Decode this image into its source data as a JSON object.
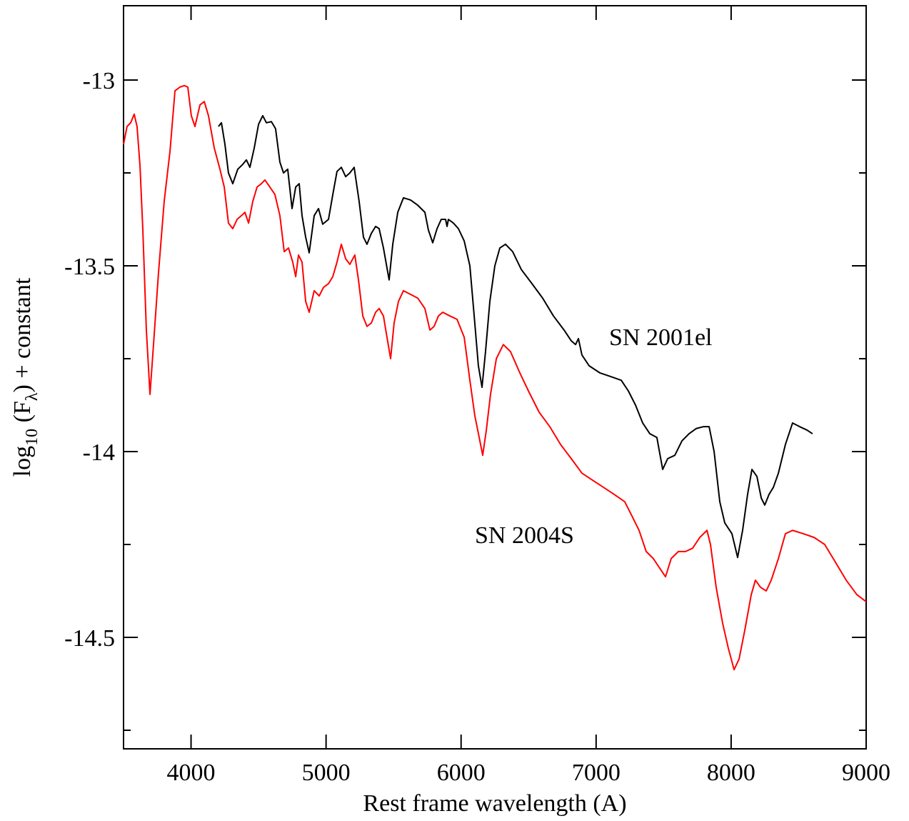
{
  "chart_data": {
    "type": "line",
    "x_label": "Rest frame wavelength (A)",
    "y_label": [
      "log",
      "10",
      " (F",
      "λ",
      ") + constant"
    ],
    "xlim": [
      3500,
      9000
    ],
    "xticks": [
      4000,
      5000,
      6000,
      7000,
      8000,
      9000
    ],
    "ylim": [
      -14.8,
      -12.8
    ],
    "yticks": [
      -13,
      -13.5,
      -14,
      -14.5
    ],
    "yminor_ticks": [
      -13.25,
      -13.75,
      -14.25,
      -14.75
    ],
    "series": [
      {
        "name": "SN 2001el",
        "color": "#000000",
        "x": [
          4203,
          4225,
          4251,
          4277,
          4309,
          4346,
          4383,
          4410,
          4436,
          4468,
          4500,
          4531,
          4558,
          4595,
          4626,
          4658,
          4685,
          4716,
          4748,
          4775,
          4801,
          4822,
          4849,
          4875,
          4912,
          4944,
          4975,
          5018,
          5050,
          5081,
          5113,
          5145,
          5176,
          5208,
          5245,
          5277,
          5303,
          5335,
          5367,
          5393,
          5425,
          5467,
          5494,
          5531,
          5573,
          5626,
          5679,
          5732,
          5758,
          5790,
          5822,
          5853,
          5885,
          5896,
          5906,
          5943,
          5980,
          6023,
          6065,
          6097,
          6128,
          6155,
          6181,
          6213,
          6250,
          6287,
          6329,
          6382,
          6446,
          6525,
          6604,
          6684,
          6763,
          6816,
          6848,
          6869,
          6895,
          6948,
          7027,
          7107,
          7186,
          7239,
          7292,
          7345,
          7398,
          7450,
          7493,
          7530,
          7583,
          7636,
          7688,
          7741,
          7794,
          7837,
          7874,
          7916,
          7953,
          8006,
          8048,
          8085,
          8122,
          8154,
          8191,
          8223,
          8249,
          8281,
          8313,
          8350,
          8402,
          8455,
          8508,
          8561,
          8603
        ],
        "values": [
          -13.125,
          -13.115,
          -13.173,
          -13.25,
          -13.279,
          -13.24,
          -13.227,
          -13.215,
          -13.235,
          -13.183,
          -13.119,
          -13.096,
          -13.115,
          -13.112,
          -13.131,
          -13.221,
          -13.25,
          -13.24,
          -13.346,
          -13.288,
          -13.279,
          -13.365,
          -13.423,
          -13.465,
          -13.365,
          -13.346,
          -13.388,
          -13.375,
          -13.308,
          -13.246,
          -13.235,
          -13.26,
          -13.25,
          -13.235,
          -13.327,
          -13.423,
          -13.442,
          -13.413,
          -13.394,
          -13.4,
          -13.452,
          -13.538,
          -13.442,
          -13.356,
          -13.317,
          -13.323,
          -13.337,
          -13.356,
          -13.404,
          -13.438,
          -13.4,
          -13.375,
          -13.375,
          -13.394,
          -13.375,
          -13.385,
          -13.4,
          -13.433,
          -13.5,
          -13.635,
          -13.769,
          -13.827,
          -13.731,
          -13.596,
          -13.5,
          -13.452,
          -13.442,
          -13.462,
          -13.51,
          -13.548,
          -13.587,
          -13.635,
          -13.673,
          -13.702,
          -13.712,
          -13.696,
          -13.74,
          -13.769,
          -13.788,
          -13.798,
          -13.808,
          -13.837,
          -13.875,
          -13.923,
          -13.952,
          -13.962,
          -14.048,
          -14.019,
          -14.01,
          -13.971,
          -13.952,
          -13.938,
          -13.933,
          -13.933,
          -14,
          -14.135,
          -14.192,
          -14.221,
          -14.285,
          -14.212,
          -14.115,
          -14.048,
          -14.067,
          -14.125,
          -14.144,
          -14.115,
          -14.096,
          -14.058,
          -13.981,
          -13.923,
          -13.933,
          -13.942,
          -13.952
        ]
      },
      {
        "name": "SN 2004S",
        "color": "#ff0000",
        "x": [
          3500,
          3526,
          3553,
          3579,
          3600,
          3622,
          3643,
          3669,
          3696,
          3722,
          3759,
          3801,
          3844,
          3881,
          3918,
          3950,
          3976,
          4002,
          4029,
          4066,
          4098,
          4129,
          4172,
          4214,
          4246,
          4277,
          4309,
          4341,
          4373,
          4399,
          4426,
          4457,
          4489,
          4521,
          4547,
          4584,
          4621,
          4658,
          4690,
          4722,
          4753,
          4775,
          4796,
          4822,
          4849,
          4875,
          4912,
          4949,
          4981,
          5018,
          5050,
          5081,
          5113,
          5145,
          5176,
          5213,
          5240,
          5272,
          5303,
          5335,
          5367,
          5393,
          5425,
          5451,
          5478,
          5504,
          5536,
          5573,
          5626,
          5679,
          5732,
          5769,
          5800,
          5832,
          5864,
          5917,
          5970,
          6023,
          6065,
          6102,
          6134,
          6160,
          6187,
          6218,
          6261,
          6313,
          6366,
          6435,
          6499,
          6578,
          6657,
          6737,
          6816,
          6895,
          6974,
          7054,
          7133,
          7212,
          7265,
          7318,
          7371,
          7424,
          7477,
          7514,
          7556,
          7609,
          7662,
          7715,
          7768,
          7821,
          7847,
          7889,
          7937,
          7979,
          8022,
          8059,
          8101,
          8149,
          8180,
          8217,
          8260,
          8297,
          8350,
          8402,
          8455,
          8535,
          8614,
          8693,
          8773,
          8852,
          8931,
          9000
        ],
        "values": [
          -13.173,
          -13.125,
          -13.115,
          -13.092,
          -13.125,
          -13.231,
          -13.404,
          -13.673,
          -13.846,
          -13.712,
          -13.519,
          -13.327,
          -13.192,
          -13.029,
          -13.019,
          -13.015,
          -13.019,
          -13.096,
          -13.125,
          -13.067,
          -13.058,
          -13.096,
          -13.183,
          -13.24,
          -13.288,
          -13.385,
          -13.4,
          -13.375,
          -13.365,
          -13.356,
          -13.385,
          -13.327,
          -13.288,
          -13.279,
          -13.269,
          -13.288,
          -13.308,
          -13.365,
          -13.462,
          -13.452,
          -13.49,
          -13.529,
          -13.471,
          -13.49,
          -13.596,
          -13.625,
          -13.567,
          -13.581,
          -13.558,
          -13.548,
          -13.529,
          -13.49,
          -13.442,
          -13.481,
          -13.496,
          -13.471,
          -13.538,
          -13.635,
          -13.663,
          -13.654,
          -13.625,
          -13.615,
          -13.635,
          -13.692,
          -13.75,
          -13.654,
          -13.596,
          -13.567,
          -13.577,
          -13.587,
          -13.615,
          -13.673,
          -13.663,
          -13.635,
          -13.625,
          -13.635,
          -13.644,
          -13.692,
          -13.808,
          -13.904,
          -13.962,
          -14.01,
          -13.942,
          -13.846,
          -13.75,
          -13.712,
          -13.731,
          -13.788,
          -13.837,
          -13.894,
          -13.933,
          -13.981,
          -14.019,
          -14.058,
          -14.077,
          -14.096,
          -14.115,
          -14.135,
          -14.173,
          -14.212,
          -14.269,
          -14.288,
          -14.317,
          -14.337,
          -14.288,
          -14.269,
          -14.269,
          -14.26,
          -14.231,
          -14.212,
          -14.25,
          -14.365,
          -14.462,
          -14.529,
          -14.587,
          -14.558,
          -14.481,
          -14.385,
          -14.346,
          -14.365,
          -14.375,
          -14.346,
          -14.288,
          -14.221,
          -14.212,
          -14.221,
          -14.231,
          -14.25,
          -14.298,
          -14.346,
          -14.385,
          -14.404
        ]
      }
    ]
  }
}
